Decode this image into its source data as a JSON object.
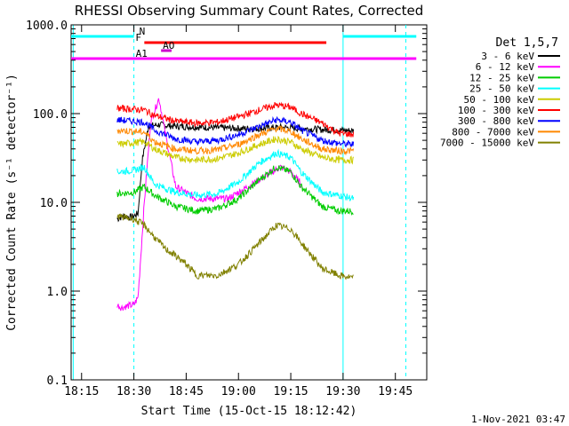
{
  "chart_data": {
    "type": "line",
    "title": "RHESSI Observing Summary Count Rates, Corrected",
    "xlabel": "Start Time (15-Oct-15 18:12:42)",
    "ylabel": "Corrected Count Rate (s⁻¹ detector⁻¹)",
    "yscale": "log",
    "xlim": [
      18.2,
      19.9
    ],
    "ylim": [
      0.1,
      1000
    ],
    "x_unit": "hours UT",
    "x_ticks": [
      {
        "value": 18.25,
        "label": "18:15"
      },
      {
        "value": 18.5,
        "label": "18:30"
      },
      {
        "value": 18.75,
        "label": "18:45"
      },
      {
        "value": 19.0,
        "label": "19:00"
      },
      {
        "value": 19.25,
        "label": "19:15"
      },
      {
        "value": 19.5,
        "label": "19:30"
      },
      {
        "value": 19.75,
        "label": "19:45"
      }
    ],
    "y_ticks": [
      {
        "value": 0.1,
        "label": "0.1"
      },
      {
        "value": 1,
        "label": "1.0"
      },
      {
        "value": 10,
        "label": "10.0"
      },
      {
        "value": 100,
        "label": "100.0"
      },
      {
        "value": 1000,
        "label": "1000.0"
      }
    ],
    "legend_title": "Det 1,5,7",
    "legend_position": "right",
    "series": [
      {
        "name": "3 - 6 keV",
        "color": "#000000",
        "x": [
          18.42,
          18.45,
          18.49,
          18.52,
          18.54,
          18.57,
          18.62,
          18.7,
          18.85,
          19.0,
          19.1,
          19.2,
          19.3,
          19.4,
          19.48,
          19.55
        ],
        "y": [
          6.5,
          7,
          6.8,
          7.5,
          30,
          72,
          75,
          72,
          70,
          68,
          68,
          70,
          68,
          66,
          65,
          64
        ]
      },
      {
        "name": "6 - 12 keV",
        "color": "#ff00ff",
        "x": [
          18.42,
          18.44,
          18.47,
          18.5,
          18.52,
          18.55,
          18.58,
          18.62,
          18.65,
          18.7,
          18.8,
          18.95,
          19.1,
          19.2,
          19.25,
          19.3
        ],
        "y": [
          0.7,
          0.65,
          0.68,
          0.7,
          0.85,
          10,
          80,
          150,
          60,
          15,
          11,
          11,
          18,
          25,
          22,
          16
        ]
      },
      {
        "name": "12 - 25 keV",
        "color": "#00cc00",
        "x": [
          18.42,
          18.5,
          18.55,
          18.6,
          18.7,
          18.8,
          18.9,
          19.0,
          19.1,
          19.18,
          19.25,
          19.3,
          19.4,
          19.48,
          19.55
        ],
        "y": [
          12.5,
          13,
          15,
          12,
          9,
          8,
          8.5,
          11,
          18,
          25,
          22,
          15,
          9,
          8,
          8
        ]
      },
      {
        "name": "25 - 50 keV",
        "color": "#00ffff",
        "x": [
          18.42,
          18.5,
          18.55,
          18.6,
          18.7,
          18.8,
          18.9,
          19.0,
          19.1,
          19.18,
          19.25,
          19.3,
          19.4,
          19.48,
          19.55
        ],
        "y": [
          22,
          23,
          25,
          16,
          13,
          12,
          12.5,
          17,
          28,
          36,
          32,
          22,
          13,
          12,
          11
        ]
      },
      {
        "name": "50 - 100 keV",
        "color": "#cccc00",
        "x": [
          18.42,
          18.5,
          18.55,
          18.6,
          18.7,
          18.8,
          18.9,
          19.0,
          19.1,
          19.18,
          19.25,
          19.3,
          19.4,
          19.48,
          19.55
        ],
        "y": [
          45,
          47,
          48,
          40,
          32,
          30,
          31,
          36,
          45,
          52,
          48,
          40,
          32,
          30,
          30
        ]
      },
      {
        "name": "100 - 300 keV",
        "color": "#ff0000",
        "x": [
          18.42,
          18.5,
          18.55,
          18.6,
          18.7,
          18.8,
          18.9,
          19.0,
          19.1,
          19.18,
          19.25,
          19.3,
          19.4,
          19.48,
          19.55
        ],
        "y": [
          115,
          112,
          110,
          95,
          82,
          78,
          80,
          92,
          110,
          125,
          118,
          100,
          78,
          60,
          58
        ]
      },
      {
        "name": "300 - 800 keV",
        "color": "#0000ff",
        "x": [
          18.42,
          18.5,
          18.55,
          18.6,
          18.7,
          18.8,
          18.9,
          19.0,
          19.1,
          19.18,
          19.25,
          19.3,
          19.4,
          19.48,
          19.55
        ],
        "y": [
          85,
          82,
          80,
          65,
          52,
          48,
          50,
          58,
          72,
          85,
          80,
          65,
          50,
          46,
          45
        ]
      },
      {
        "name": "800 - 7000 keV",
        "color": "#ff8800",
        "x": [
          18.42,
          18.5,
          18.55,
          18.6,
          18.7,
          18.8,
          18.9,
          19.0,
          19.1,
          19.18,
          19.25,
          19.3,
          19.4,
          19.48,
          19.55
        ],
        "y": [
          65,
          63,
          62,
          48,
          40,
          38,
          39,
          45,
          58,
          68,
          63,
          52,
          40,
          38,
          38
        ]
      },
      {
        "name": "7000 - 15000 keV",
        "color": "#808000",
        "x": [
          18.42,
          18.5,
          18.55,
          18.6,
          18.65,
          18.7,
          18.75,
          18.8,
          18.9,
          19.0,
          19.1,
          19.18,
          19.25,
          19.3,
          19.4,
          19.48,
          19.55
        ],
        "y": [
          7,
          6.5,
          5.5,
          4,
          3,
          2.5,
          2,
          1.5,
          1.5,
          2,
          3.5,
          5.5,
          5,
          3.5,
          1.8,
          1.5,
          1.4
        ]
      }
    ],
    "flags": [
      {
        "label": "N",
        "color": "#00ffff",
        "segments": [
          [
            18.2,
            18.5
          ],
          [
            19.5,
            19.85
          ]
        ]
      },
      {
        "label": "F",
        "color": "#ff0000",
        "segments": [
          [
            18.55,
            19.42
          ]
        ]
      },
      {
        "label": "AO",
        "color": "#cc00cc",
        "segments": [
          [
            18.63,
            18.68
          ]
        ]
      },
      {
        "label": "A1",
        "color": "#ff00ff",
        "segments": [
          [
            18.2,
            19.85
          ]
        ]
      }
    ],
    "vertical_lines": [
      {
        "x": 18.21,
        "style": "solid",
        "color": "#00ffff"
      },
      {
        "x": 18.5,
        "style": "dashed",
        "color": "#00ffff"
      },
      {
        "x": 19.5,
        "style": "solid",
        "color": "#00ffff"
      },
      {
        "x": 19.8,
        "style": "dashed",
        "color": "#00ffff"
      }
    ],
    "footer": "1-Nov-2021 03:47"
  }
}
